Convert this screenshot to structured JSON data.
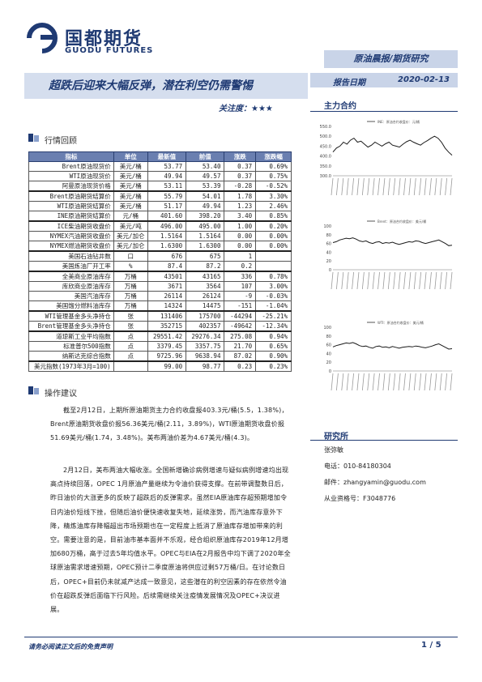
{
  "header": {
    "company_cn": "国都期货",
    "company_en": "GUODU FUTURES",
    "category": "原油晨报/期货研究",
    "title": "超跌后迎来大幅反弹，潜在利空仍需警惕",
    "date_label": "报告日期",
    "date_value": "2020-02-13",
    "attention_label": "关注度：",
    "attention_stars": "★★★",
    "main_contract": "主力合约"
  },
  "sections": {
    "market_review": "行情回顾",
    "operation": "操作建议"
  },
  "table": {
    "headers": [
      "指标",
      "单位",
      "最新值",
      "前值",
      "涨跌",
      "涨跌幅"
    ],
    "rows": [
      [
        "Brent原油现货价",
        "美元/桶",
        "53.77",
        "53.40",
        "0.37",
        "0.69%"
      ],
      [
        "WTI原油现货价",
        "美元/桶",
        "49.94",
        "49.57",
        "0.37",
        "0.75%"
      ],
      [
        "阿曼原油现货价格",
        "美元/桶",
        "53.11",
        "53.39",
        "-0.28",
        "-0.52%"
      ],
      [
        "Brent原油期货结算价",
        "美元/桶",
        "55.79",
        "54.01",
        "1.78",
        "3.30%"
      ],
      [
        "WTI原油期货结算价",
        "美元/桶",
        "51.17",
        "49.94",
        "1.23",
        "2.46%"
      ],
      [
        "INE原油期货结算价",
        "元/桶",
        "401.60",
        "398.20",
        "3.40",
        "0.85%"
      ],
      [
        "ICE柴油期货收盘价",
        "美元/吨",
        "496.00",
        "495.00",
        "1.00",
        "0.20%"
      ],
      [
        "NYMEX汽油期货收盘价",
        "美元/加仑",
        "1.5164",
        "1.5164",
        "0.00",
        "0.00%"
      ],
      [
        "NYMEX燃油期货收盘价",
        "美元/加仑",
        "1.6300",
        "1.6300",
        "0.00",
        "0.00%"
      ],
      [
        "美国石油钻井数",
        "口",
        "676",
        "675",
        "1",
        ""
      ],
      [
        "美国炼油厂开工率",
        "%",
        "87.4",
        "87.2",
        "0.2",
        ""
      ],
      [
        "全美商业原油库存",
        "万桶",
        "43501",
        "43165",
        "336",
        "0.78%"
      ],
      [
        "库欣商业原油库存",
        "万桶",
        "3671",
        "3564",
        "107",
        "3.00%"
      ],
      [
        "美国汽油库存",
        "万桶",
        "26114",
        "26124",
        "-9",
        "-0.03%"
      ],
      [
        "美国馏分燃料油库存",
        "万桶",
        "14324",
        "14475",
        "-151",
        "-1.04%"
      ],
      [
        "WTI管理基金多头净持仓",
        "张",
        "131406",
        "175700",
        "-44294",
        "-25.21%"
      ],
      [
        "Brent管理基金多头净持仓",
        "张",
        "352715",
        "402357",
        "-49642",
        "-12.34%"
      ],
      [
        "道琼斯工业平均指数",
        "点",
        "29551.42",
        "29276.34",
        "275.08",
        "0.94%"
      ],
      [
        "标准普尔500指数",
        "点",
        "3379.45",
        "3357.75",
        "21.70",
        "0.65%"
      ],
      [
        "纳斯达克综合指数",
        "点",
        "9725.96",
        "9638.94",
        "87.02",
        "0.90%"
      ],
      [
        "美元指数(1973年3月=100)",
        "",
        "99.00",
        "98.77",
        "0.23",
        "0.23%"
      ]
    ]
  },
  "paragraphs": [
    "截至2月12日，上期所原油期货主力合约收盘报403.3元/桶(5.5，1.38%)，Brent原油期货收盘价报56.36美元/桶(2.11，3.89%)，WTI原油期货收盘价报51.69美元/桶(1.74，3.48%)。美布两油价差为4.67美元/桶(4.3)。",
    "2月12日，美布两油大幅收涨。全国新增确诊病例增速与疑似病例增速均出现高点持续回落，OPEC 1月原油产量继续为令油价获得支撑。在前带调整数日后，昨日油价的大涨更多的反映了超跌后的反弹需求。虽然EIA原油库存超预期增加令日内油价短线下挫，但随后油价便快速收复失地，延续涨势，而汽油库存意外下降，精炼油库存降幅超出市场预期也在一定程度上抵消了原油库存增加带来的利空。需要注意的是，目前油市基本面并不乐观，经合组织原油库存2019年12月增加680万桶，高于过去5年均值水平。OPEC与EIA在2月报告中均下调了2020年全球原油需求增速预期，OPEC预计二季度原油将供应过剩57万桶/日。在讨论数日后，OPEC+目前仍未就减产达成一致意见，这些潜在的利空因素的存在依然令油价在超跌反弹后面临下行风险。后续需继续关注疫情发展情况及OPEC+决议进展。"
  ],
  "charts": [
    {
      "legend": "INE：原油合约收盘价：元/桶",
      "ticks_y": [
        "550.0",
        "500.0",
        "450.0",
        "400.0",
        "350.0",
        "300.0"
      ]
    },
    {
      "legend": "Brent：原油合约收盘价：美元/桶",
      "ticks_y": [
        "100",
        "80",
        "60",
        "40",
        "20",
        "0"
      ]
    },
    {
      "legend": "WTI：原油合约收盘价：美元/桶",
      "ticks_y": [
        "100",
        "80",
        "60",
        "40",
        "20",
        "0"
      ]
    }
  ],
  "chart_data": [
    {
      "type": "line",
      "series": [
        {
          "name": "INE：原油合约收盘价：元/桶",
          "values": [
            420,
            440,
            450,
            470,
            460,
            480,
            490,
            470,
            475,
            460,
            445,
            455,
            470,
            460,
            450,
            462,
            470,
            455,
            450,
            445,
            460,
            472,
            480,
            470,
            462,
            455,
            468,
            478,
            490,
            500,
            490,
            470,
            440,
            420,
            404
          ]
        }
      ],
      "ylim": [
        300,
        550
      ]
    },
    {
      "type": "line",
      "series": [
        {
          "name": "Brent：原油合约收盘价：美元/桶",
          "values": [
            62,
            64,
            68,
            70,
            72,
            71,
            73,
            70,
            66,
            64,
            66,
            62,
            60,
            63,
            64,
            60,
            62,
            61,
            63,
            60,
            58,
            60,
            62,
            64,
            63,
            66,
            65,
            62,
            60,
            62,
            64,
            66,
            68,
            64,
            60,
            55,
            56
          ]
        }
      ],
      "ylim": [
        0,
        100
      ]
    },
    {
      "type": "line",
      "series": [
        {
          "name": "WTI：原油合约收盘价：美元/桶",
          "values": [
            55,
            58,
            60,
            62,
            64,
            63,
            65,
            62,
            58,
            56,
            57,
            54,
            52,
            56,
            57,
            54,
            55,
            53,
            56,
            54,
            52,
            54,
            55,
            56,
            55,
            57,
            56,
            54,
            53,
            55,
            57,
            60,
            62,
            58,
            54,
            50,
            51
          ]
        }
      ],
      "ylim": [
        0,
        100
      ]
    }
  ],
  "research": {
    "title": "研究所",
    "name": "张弥敏",
    "phone": "电话：010-84180304",
    "email": "邮件：zhangyamin@guodu.com",
    "license": "从业资格号：F3048776"
  },
  "footer": {
    "disclaimer": "请务必阅读正文后的免责声明",
    "page": "1 / 5"
  }
}
